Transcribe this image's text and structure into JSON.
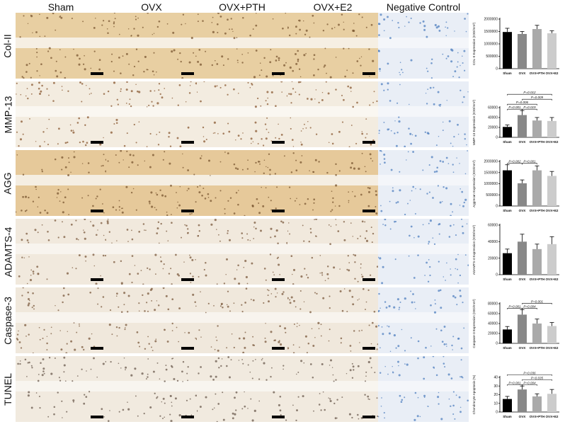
{
  "columns": [
    "Sham",
    "OVX",
    "OVX+PTH",
    "OVX+E2",
    "Negative Control"
  ],
  "rows": [
    {
      "label": "Col-II",
      "tone": "#e8cfa2",
      "band": "#f6efe3",
      "dot": "#7a5530"
    },
    {
      "label": "MMP-13",
      "tone": "#f3ece0",
      "band": "#faf7f1",
      "dot": "#8a5a33"
    },
    {
      "label": "AGG",
      "tone": "#e6c99a",
      "band": "#f5eee2",
      "dot": "#7a5530"
    },
    {
      "label": "ADAMTS-4",
      "tone": "#f1e9dd",
      "band": "#f8f4ee",
      "dot": "#7b5a3e"
    },
    {
      "label": "Caspase-3",
      "tone": "#f0e8dc",
      "band": "#f8f4ee",
      "dot": "#7b5a3e"
    },
    {
      "label": "TUNEL",
      "tone": "#f1eadf",
      "band": "#f8f5ef",
      "dot": "#6a5a4e"
    }
  ],
  "negative_control_tone": "#e9eef6",
  "negative_control_dot": "#4f7fbf",
  "chart_data": [
    {
      "type": "bar",
      "ylabel": "COL-II Expression (IOD/mm²)",
      "categories": [
        "Sham",
        "OVX",
        "OVX+PTH",
        "OVX+E2"
      ],
      "values": [
        1480000,
        1400000,
        1600000,
        1430000
      ],
      "errors": [
        150000,
        100000,
        150000,
        100000
      ],
      "yticks": [
        "0",
        "500000",
        "1000000",
        "1500000",
        "2000000"
      ],
      "ylim": [
        0,
        2000000
      ],
      "colors": [
        "#000000",
        "#888888",
        "#aaaaaa",
        "#cccccc"
      ],
      "comparisons": []
    },
    {
      "type": "bar",
      "ylabel": "MMP-13 Expression (IOD/mm²)",
      "categories": [
        "Sham",
        "OVX",
        "OVX+PTH",
        "OVX+E2"
      ],
      "values": [
        21000,
        45000,
        34000,
        33000
      ],
      "errors": [
        4000,
        9000,
        6000,
        7000
      ],
      "yticks": [
        "0",
        "20000",
        "40000",
        "60000"
      ],
      "ylim": [
        0,
        60000
      ],
      "colors": [
        "#000000",
        "#888888",
        "#aaaaaa",
        "#cccccc"
      ],
      "comparisons": [
        {
          "a": 0,
          "b": 3,
          "label": "P=0.012",
          "level": 4
        },
        {
          "a": 1,
          "b": 3,
          "label": "P=0.009",
          "level": 3
        },
        {
          "a": 0,
          "b": 2,
          "label": "P=0.006",
          "level": 2
        },
        {
          "a": 0,
          "b": 1,
          "label": "P=0.001",
          "level": 1
        },
        {
          "a": 1,
          "b": 2,
          "label": "P=0.019",
          "level": 1
        }
      ]
    },
    {
      "type": "bar",
      "ylabel": "Aggrecan Expression (IOD/mm²)",
      "categories": [
        "Sham",
        "OVX",
        "OVX+PTH",
        "OVX+E2"
      ],
      "values": [
        1600000,
        1020000,
        1600000,
        1350000
      ],
      "errors": [
        250000,
        150000,
        200000,
        200000
      ],
      "yticks": [
        "0",
        "500000",
        "1000000",
        "1500000",
        "2000000"
      ],
      "ylim": [
        0,
        2000000
      ],
      "colors": [
        "#000000",
        "#888888",
        "#aaaaaa",
        "#cccccc"
      ],
      "comparisons": [
        {
          "a": 0,
          "b": 1,
          "label": "P=0.002",
          "level": 1
        },
        {
          "a": 1,
          "b": 2,
          "label": "P=0.001",
          "level": 1
        }
      ]
    },
    {
      "type": "bar",
      "ylabel": "ADAMTS-4 Expression (IOD/mm²)",
      "categories": [
        "Sham",
        "OVX",
        "OVX+PTH",
        "OVX+E2"
      ],
      "values": [
        26000,
        40000,
        31000,
        37000
      ],
      "errors": [
        5000,
        9000,
        6000,
        9000
      ],
      "yticks": [
        "0",
        "20000",
        "40000",
        "60000"
      ],
      "ylim": [
        0,
        60000
      ],
      "colors": [
        "#000000",
        "#888888",
        "#aaaaaa",
        "#cccccc"
      ],
      "comparisons": []
    },
    {
      "type": "bar",
      "ylabel": "Caspase-3 Expression (IOD/mm²)",
      "categories": [
        "Sham",
        "OVX",
        "OVX+PTH",
        "OVX+E2"
      ],
      "values": [
        28000,
        58000,
        40000,
        35000
      ],
      "errors": [
        6000,
        10000,
        9000,
        7000
      ],
      "yticks": [
        "0",
        "20000",
        "40000",
        "60000",
        "80000"
      ],
      "ylim": [
        0,
        80000
      ],
      "colors": [
        "#000000",
        "#888888",
        "#aaaaaa",
        "#cccccc"
      ],
      "comparisons": [
        {
          "a": 1,
          "b": 3,
          "label": "P=0.001",
          "level": 2
        },
        {
          "a": 0,
          "b": 1,
          "label": "P=0.001",
          "level": 1
        },
        {
          "a": 1,
          "b": 2,
          "label": "P=0.004",
          "level": 1
        }
      ]
    },
    {
      "type": "bar",
      "ylabel": "Chondrocyte Apoptosis (%)",
      "categories": [
        "Sham",
        "OVX",
        "OVX+PTH",
        "OVX+E2"
      ],
      "values": [
        15,
        26,
        18,
        21
      ],
      "errors": [
        3,
        4,
        3,
        5
      ],
      "yticks": [
        "0",
        "10",
        "20",
        "30",
        "40"
      ],
      "ylim": [
        0,
        40
      ],
      "colors": [
        "#000000",
        "#888888",
        "#aaaaaa",
        "#cccccc"
      ],
      "comparisons": [
        {
          "a": 0,
          "b": 3,
          "label": "P=0.036",
          "level": 3
        },
        {
          "a": 1,
          "b": 3,
          "label": "P=0.035",
          "level": 2
        },
        {
          "a": 0,
          "b": 1,
          "label": "P=0.001",
          "level": 1
        },
        {
          "a": 1,
          "b": 2,
          "label": "P=0.004",
          "level": 1
        }
      ]
    }
  ]
}
